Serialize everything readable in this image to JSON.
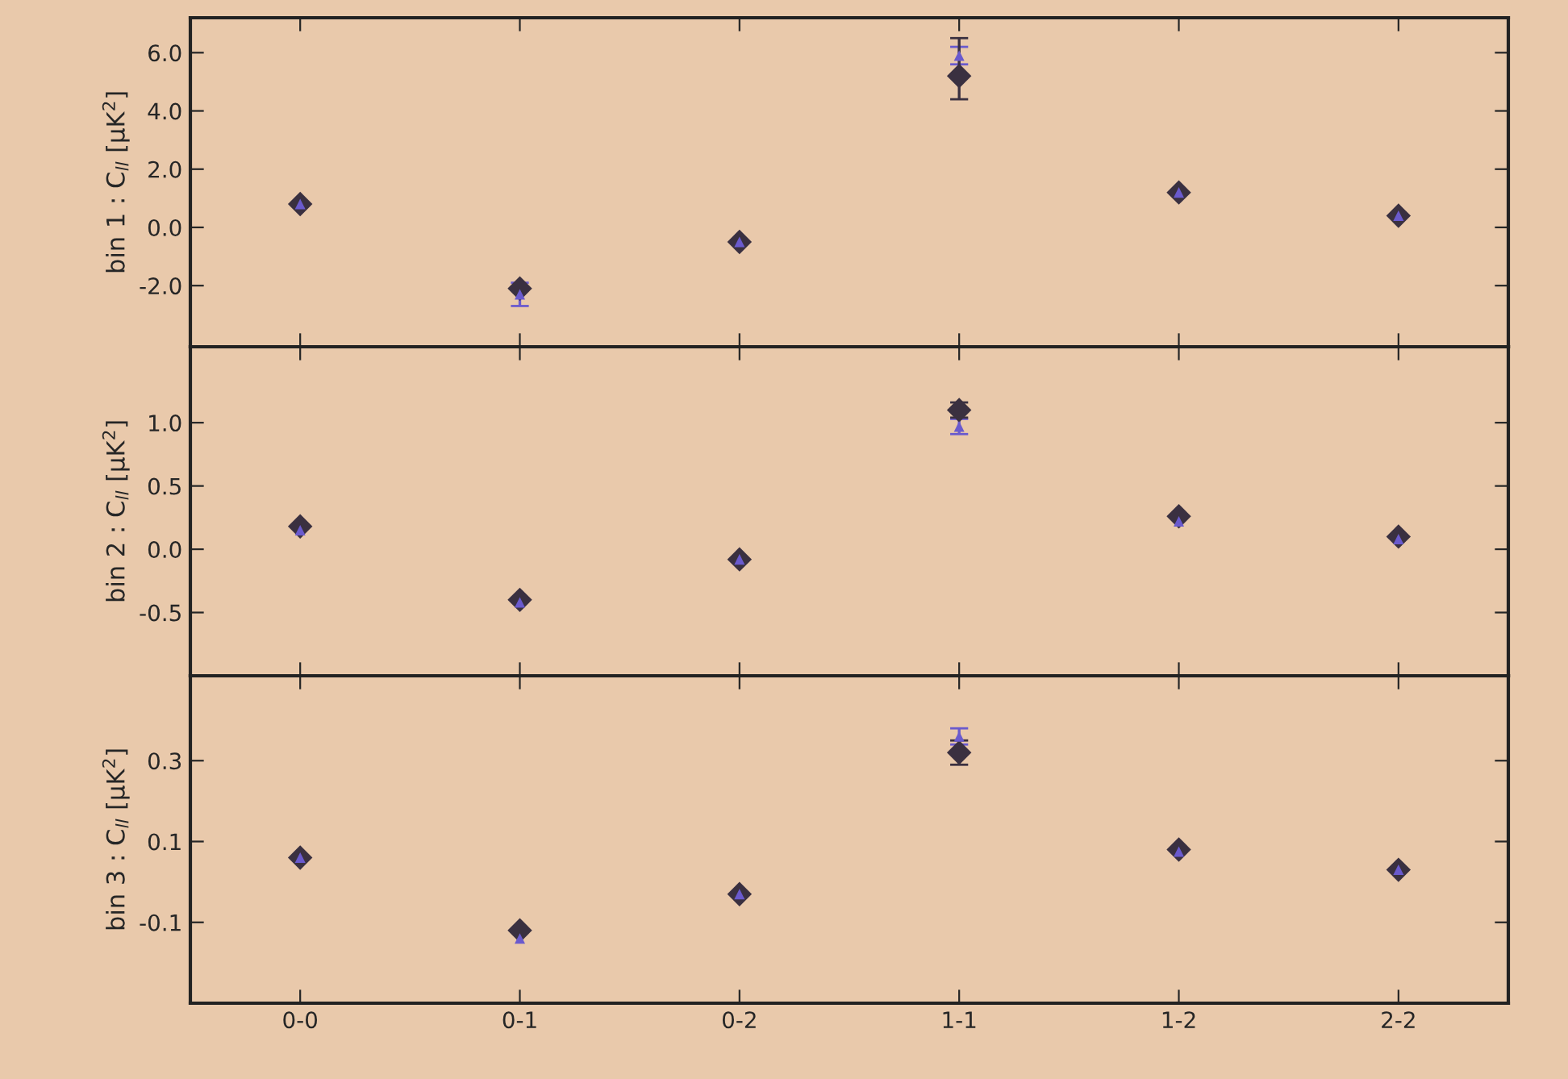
{
  "chart_data": [
    {
      "type": "scatter",
      "ylabel": "bin 1 : C$_{ll}$ [μK$^{2}$]",
      "categories": [
        null,
        null,
        null,
        null,
        null,
        null
      ],
      "ylim": [
        -4.1,
        7.2
      ],
      "yticks": [
        {
          "value": -2,
          "label": "-2.0"
        },
        {
          "value": 0,
          "label": "0.0"
        },
        {
          "value": 2,
          "label": "2.0"
        },
        {
          "value": 4,
          "label": "4.0"
        },
        {
          "value": 6,
          "label": "6.0"
        }
      ],
      "tick_labels": "y",
      "grid": false,
      "legend": false,
      "series": [
        {
          "color": "#6a5acd",
          "marker": "triangle",
          "values": [
            0.8,
            -2.3,
            -0.5,
            5.9,
            1.2,
            0.4
          ],
          "errors": [
            null,
            0.4,
            null,
            0.3,
            null,
            null
          ]
        },
        {
          "color": "#3a3040",
          "marker": "diamond",
          "values": [
            0.8,
            -2.1,
            -0.5,
            5.2,
            1.2,
            0.4
          ],
          "errors": [
            null,
            null,
            null,
            [
              4.4,
              6.5
            ],
            null,
            null
          ]
        }
      ]
    },
    {
      "type": "scatter",
      "ylabel": "bin 2 : C$_{ll}$ [μK$^{2}$]",
      "categories": [
        null,
        null,
        null,
        null,
        null,
        null
      ],
      "ylim": [
        -1.0,
        1.6
      ],
      "yticks": [
        {
          "value": -0.5,
          "label": "-0.5"
        },
        {
          "value": 0,
          "label": "0.0"
        },
        {
          "value": 0.5,
          "label": "0.5"
        },
        {
          "value": 1,
          "label": "1.0"
        }
      ],
      "tick_labels": "y",
      "grid": false,
      "legend": false,
      "series": [
        {
          "color": "#6a5acd",
          "marker": "triangle",
          "values": [
            0.15,
            -0.42,
            -0.08,
            0.97,
            0.22,
            0.08
          ],
          "errors": [
            null,
            null,
            null,
            0.06,
            null,
            null
          ]
        },
        {
          "color": "#3a3040",
          "marker": "diamond",
          "values": [
            0.18,
            -0.4,
            -0.08,
            1.1,
            0.26,
            0.1
          ],
          "errors": [
            null,
            null,
            null,
            0.06,
            null,
            null
          ]
        }
      ]
    },
    {
      "type": "scatter",
      "ylabel": "bin 3 : C$_{ll}$ [μK$^{2}$]",
      "categories": [
        "0-0",
        "0-1",
        "0-2",
        "1-1",
        "1-2",
        "2-2"
      ],
      "ylim": [
        -0.3,
        0.51
      ],
      "yticks": [
        -0.1,
        0.1,
        0.3
      ],
      "grid": false,
      "legend": false,
      "series": [
        {
          "color": "#6a5acd",
          "marker": "triangle",
          "values": [
            0.06,
            -0.14,
            -0.03,
            0.36,
            0.075,
            0.03
          ],
          "errors": [
            null,
            null,
            null,
            0.02,
            null,
            null
          ]
        },
        {
          "color": "#3a3040",
          "marker": "diamond",
          "values": [
            0.06,
            -0.12,
            -0.03,
            0.32,
            0.08,
            0.03
          ],
          "errors": [
            null,
            null,
            null,
            [
              0.29,
              0.35
            ],
            null,
            null
          ]
        }
      ]
    }
  ]
}
